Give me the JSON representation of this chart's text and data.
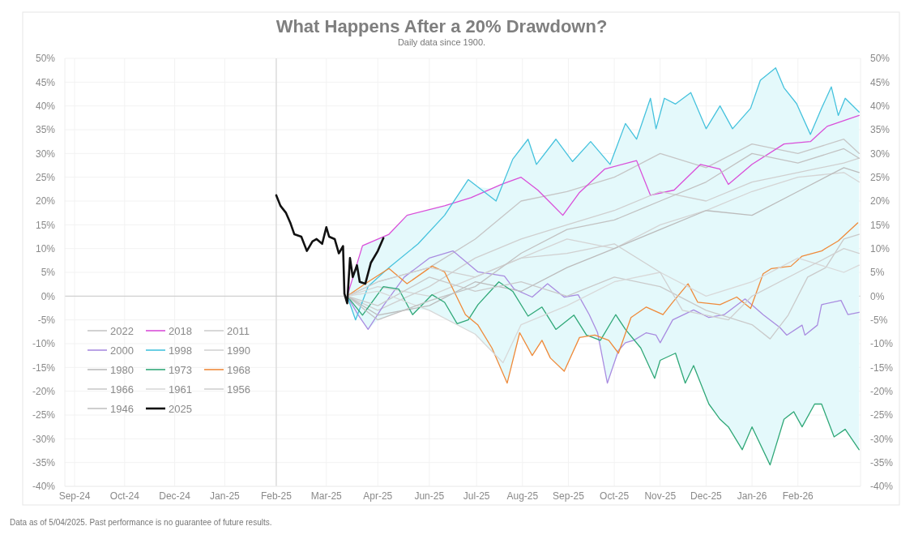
{
  "chart_data": {
    "type": "line",
    "title": "What Happens After a 20% Drawdown?",
    "subtitle": "Daily data since 1900.",
    "annotations": [
      "Data as of 5/04/2025. Past performance is no guarantee of future results."
    ],
    "xlim": [
      "2024-09-13",
      "2026-04-08"
    ],
    "xticks": [
      {
        "value": "2024-09-20",
        "label": "Sep-24"
      },
      {
        "value": "2024-10-26",
        "label": "Oct-24"
      },
      {
        "value": "2024-12-01",
        "label": "Dec-24"
      },
      {
        "value": "2025-01-06",
        "label": "Jan-25"
      },
      {
        "value": "2025-02-12",
        "label": "Feb-25"
      },
      {
        "value": "2025-03-20",
        "label": "Mar-25"
      },
      {
        "value": "2025-04-26",
        "label": "Apr-25"
      },
      {
        "value": "2025-06-02",
        "label": "Jun-25"
      },
      {
        "value": "2025-07-06",
        "label": "Jul-25"
      },
      {
        "value": "2025-08-08",
        "label": "Aug-25"
      },
      {
        "value": "2025-09-10",
        "label": "Sep-25"
      },
      {
        "value": "2025-10-13",
        "label": "Oct-25"
      },
      {
        "value": "2025-11-15",
        "label": "Nov-25"
      },
      {
        "value": "2025-12-18",
        "label": "Dec-25"
      },
      {
        "value": "2026-01-20",
        "label": "Jan-26"
      },
      {
        "value": "2026-02-22",
        "label": "Feb-26"
      }
    ],
    "ylim": [
      -40,
      50
    ],
    "yticks": [
      {
        "value": -40,
        "label": "-40%"
      },
      {
        "value": -35,
        "label": "-35%"
      },
      {
        "value": -30,
        "label": "-30%"
      },
      {
        "value": -25,
        "label": "-25%"
      },
      {
        "value": -20,
        "label": "-20%"
      },
      {
        "value": -15,
        "label": "-15%"
      },
      {
        "value": -10,
        "label": "-10%"
      },
      {
        "value": -5,
        "label": "-5%"
      },
      {
        "value": 0,
        "label": "0%"
      },
      {
        "value": 5,
        "label": "5%"
      },
      {
        "value": 10,
        "label": "10%"
      },
      {
        "value": 15,
        "label": "15%"
      },
      {
        "value": 20,
        "label": "20%"
      },
      {
        "value": 25,
        "label": "25%"
      },
      {
        "value": 30,
        "label": "30%"
      },
      {
        "value": 35,
        "label": "35%"
      },
      {
        "value": 40,
        "label": "40%"
      },
      {
        "value": 45,
        "label": "45%"
      },
      {
        "value": 50,
        "label": "50%"
      }
    ],
    "y2lim": [
      -40,
      50
    ],
    "y2ticks": [
      {
        "value": -40,
        "label": "-40%"
      },
      {
        "value": -35,
        "label": "-35%"
      },
      {
        "value": -30,
        "label": "-30%"
      },
      {
        "value": -25,
        "label": "-25%"
      },
      {
        "value": -20,
        "label": "-20%"
      },
      {
        "value": -15,
        "label": "-15%"
      },
      {
        "value": -10,
        "label": "-10%"
      },
      {
        "value": -5,
        "label": "-5%"
      },
      {
        "value": 0,
        "label": "0%"
      },
      {
        "value": 5,
        "label": "5%"
      },
      {
        "value": 10,
        "label": "10%"
      },
      {
        "value": 15,
        "label": "15%"
      },
      {
        "value": 20,
        "label": "20%"
      },
      {
        "value": 25,
        "label": "25%"
      },
      {
        "value": 30,
        "label": "30%"
      },
      {
        "value": 35,
        "label": "35%"
      },
      {
        "value": 40,
        "label": "40%"
      },
      {
        "value": 45,
        "label": "45%"
      },
      {
        "value": 50,
        "label": "50%"
      }
    ],
    "grid": true,
    "legend": "bottom left",
    "line_style": "solid",
    "ref_lines": [
      {
        "axis": "x",
        "value": "2025-02-12",
        "color": "#d0d0d0"
      },
      {
        "axis": "y",
        "value": 0,
        "color": "#c8c8c8"
      }
    ],
    "series": [
      {
        "name": "2022",
        "color": "#c6c6c6",
        "x": [
          "2025-04-04",
          "2025-04-26",
          "2025-06-02",
          "2025-07-05",
          "2025-08-07",
          "2025-09-09",
          "2025-10-13",
          "2025-11-15",
          "2025-12-18",
          "2026-01-20",
          "2026-02-22",
          "2026-03-27",
          "2026-04-07"
        ],
        "values": [
          0,
          3,
          6,
          12,
          20,
          22,
          25,
          30,
          27,
          32,
          30,
          33,
          30
        ]
      },
      {
        "name": "2018",
        "color": "#d94fd9",
        "x": [
          "2025-04-04",
          "2025-04-15",
          "2025-05-04",
          "2025-05-17",
          "2025-06-13",
          "2025-07-02",
          "2025-07-24",
          "2025-08-07",
          "2025-08-19",
          "2025-09-06",
          "2025-09-18",
          "2025-10-06",
          "2025-10-29",
          "2025-11-08",
          "2025-11-25",
          "2025-12-14",
          "2025-12-28",
          "2026-01-03",
          "2026-01-20",
          "2026-02-12",
          "2026-03-03",
          "2026-03-15",
          "2026-04-07"
        ],
        "values": [
          0,
          10.6,
          13,
          17,
          19,
          20.7,
          23.5,
          25,
          22.3,
          17,
          21.8,
          26.7,
          28.5,
          21.2,
          22.3,
          27.7,
          26.7,
          23.5,
          27.7,
          32,
          32.5,
          35.7,
          38
        ]
      },
      {
        "name": "2011",
        "color": "#cfcfcf",
        "x": [
          "2025-04-04",
          "2025-04-26",
          "2025-06-02",
          "2025-07-05",
          "2025-08-07",
          "2025-09-09",
          "2025-10-13",
          "2025-11-15",
          "2025-12-18",
          "2026-01-20",
          "2026-02-22",
          "2026-03-27",
          "2026-04-07"
        ],
        "values": [
          0,
          -3,
          2,
          8,
          12,
          15,
          18,
          22,
          20,
          24,
          26,
          28,
          29
        ]
      },
      {
        "name": "2000",
        "color": "#a98ce0",
        "x": [
          "2025-04-04",
          "2025-04-12",
          "2025-04-19",
          "2025-04-30",
          "2025-05-15",
          "2025-06-02",
          "2025-06-19",
          "2025-07-07",
          "2025-07-26",
          "2025-08-02",
          "2025-08-15",
          "2025-08-26",
          "2025-09-07",
          "2025-09-17",
          "2025-09-25",
          "2025-10-01",
          "2025-10-08",
          "2025-10-16",
          "2025-10-21",
          "2025-10-27",
          "2025-11-05",
          "2025-11-12",
          "2025-11-15",
          "2025-11-24",
          "2025-12-09",
          "2025-12-20",
          "2025-12-31",
          "2026-01-15",
          "2026-01-28",
          "2026-02-09",
          "2026-02-14",
          "2026-02-25",
          "2026-02-27",
          "2026-03-08",
          "2026-03-11",
          "2026-03-25",
          "2026-03-30",
          "2026-04-07"
        ],
        "values": [
          0,
          -4,
          -7,
          -2,
          4,
          8,
          9.5,
          5.1,
          4.2,
          1.5,
          -0.2,
          2.6,
          -0.2,
          0.3,
          -3.9,
          -7.7,
          -18.3,
          -11.4,
          -9.8,
          -9.3,
          -7.7,
          -8.2,
          -9.8,
          -5,
          -2.9,
          -4.5,
          -3.9,
          -0.6,
          -3.9,
          -6.6,
          -8.2,
          -6.1,
          -8.2,
          -6.1,
          -1.8,
          -0.9,
          -3.9,
          -3.4
        ]
      },
      {
        "name": "1998",
        "color": "#45c2dd",
        "x": [
          "2025-04-04",
          "2025-04-10",
          "2025-04-19",
          "2025-05-04",
          "2025-05-25",
          "2025-06-13",
          "2025-06-30",
          "2025-07-20",
          "2025-08-01",
          "2025-08-12",
          "2025-08-18",
          "2025-09-01",
          "2025-09-13",
          "2025-09-26",
          "2025-10-10",
          "2025-10-21",
          "2025-10-29",
          "2025-11-08",
          "2025-11-12",
          "2025-11-18",
          "2025-11-26",
          "2025-12-07",
          "2025-12-18",
          "2025-12-28",
          "2026-01-06",
          "2026-01-19",
          "2026-01-26",
          "2026-02-06",
          "2026-02-12",
          "2026-02-21",
          "2026-03-03",
          "2026-03-11",
          "2026-03-18",
          "2026-03-23",
          "2026-03-28",
          "2026-04-07"
        ],
        "values": [
          0,
          -5,
          2,
          6,
          11,
          17,
          24.5,
          20,
          28.8,
          33,
          27.7,
          33,
          28.3,
          32.5,
          27.7,
          36.3,
          33,
          41.6,
          35.2,
          41.6,
          40.4,
          42.8,
          35.2,
          40,
          35.2,
          39.5,
          45.4,
          48,
          43.8,
          40.5,
          34,
          39.5,
          44,
          38,
          41.6,
          38.7
        ]
      },
      {
        "name": "1990",
        "color": "#d4d4d4",
        "x": [
          "2025-04-04",
          "2025-04-26",
          "2025-06-02",
          "2025-07-05",
          "2025-08-07",
          "2025-09-09",
          "2025-10-13",
          "2025-11-15",
          "2025-12-18",
          "2026-01-20",
          "2026-02-22",
          "2026-03-27",
          "2026-04-07"
        ],
        "values": [
          0,
          2,
          0,
          4,
          8,
          12,
          10,
          15,
          18,
          22,
          25,
          26,
          24
        ]
      },
      {
        "name": "1980",
        "color": "#bcbcbc",
        "x": [
          "2025-04-04",
          "2025-04-26",
          "2025-06-02",
          "2025-07-05",
          "2025-08-07",
          "2025-09-09",
          "2025-10-13",
          "2025-11-15",
          "2025-12-18",
          "2026-01-20",
          "2026-02-22",
          "2026-03-27",
          "2026-04-07"
        ],
        "values": [
          0,
          -4,
          -2,
          3,
          1,
          6,
          10,
          14,
          18,
          17,
          22,
          27,
          26
        ]
      },
      {
        "name": "1973",
        "color": "#30a878",
        "x": [
          "2025-04-04",
          "2025-04-15",
          "2025-04-30",
          "2025-05-11",
          "2025-05-21",
          "2025-06-04",
          "2025-06-13",
          "2025-06-22",
          "2025-06-30",
          "2025-07-07",
          "2025-07-22",
          "2025-08-01",
          "2025-08-12",
          "2025-08-22",
          "2025-09-01",
          "2025-09-14",
          "2025-09-23",
          "2025-10-03",
          "2025-10-14",
          "2025-10-21",
          "2025-11-01",
          "2025-11-11",
          "2025-11-15",
          "2025-11-26",
          "2025-12-03",
          "2025-12-09",
          "2025-12-20",
          "2025-12-28",
          "2026-01-03",
          "2026-01-13",
          "2026-01-20",
          "2026-02-02",
          "2026-02-12",
          "2026-02-19",
          "2026-02-25",
          "2026-03-06",
          "2026-03-11",
          "2026-03-20",
          "2026-03-28",
          "2026-04-07"
        ],
        "values": [
          0,
          -4,
          2,
          1.5,
          -3.9,
          0.3,
          -1.3,
          -5.8,
          -5,
          -1.8,
          3,
          1,
          -4.2,
          -2.3,
          -7,
          -4,
          -8.2,
          -9.3,
          -3.9,
          -7,
          -10.9,
          -17.3,
          -13.5,
          -12,
          -18.3,
          -14.6,
          -22.7,
          -25.9,
          -27.5,
          -32.3,
          -27.5,
          -35.5,
          -25.9,
          -24.3,
          -27.5,
          -22.7,
          -22.7,
          -29.6,
          -28,
          -32.3
        ]
      },
      {
        "name": "1968",
        "color": "#ef8a3a",
        "x": [
          "2025-04-04",
          "2025-04-19",
          "2025-05-04",
          "2025-05-17",
          "2025-06-04",
          "2025-06-13",
          "2025-06-28",
          "2025-07-07",
          "2025-07-17",
          "2025-07-28",
          "2025-08-06",
          "2025-08-15",
          "2025-08-22",
          "2025-08-28",
          "2025-09-07",
          "2025-09-18",
          "2025-09-29",
          "2025-10-09",
          "2025-10-16",
          "2025-10-25",
          "2025-11-05",
          "2025-11-17",
          "2025-11-24",
          "2025-12-05",
          "2025-12-12",
          "2025-12-28",
          "2026-01-09",
          "2026-01-19",
          "2026-01-28",
          "2026-02-03",
          "2026-02-17",
          "2026-02-25",
          "2026-03-11",
          "2026-03-23",
          "2026-04-06"
        ],
        "values": [
          0,
          3,
          5.8,
          2.6,
          6.3,
          5.1,
          -3.9,
          -6.1,
          -10.9,
          -18.3,
          -7.7,
          -12.5,
          -9.3,
          -13,
          -15.8,
          -8.7,
          -8.2,
          -9.3,
          -12,
          -4.5,
          -2.3,
          -3.9,
          -1.3,
          2.6,
          -1.3,
          -1.8,
          -0.2,
          -2.6,
          4.7,
          5.8,
          6.3,
          8.4,
          9.5,
          11.6,
          15.4
        ]
      },
      {
        "name": "1966",
        "color": "#cacaca",
        "x": [
          "2025-04-04",
          "2025-04-26",
          "2025-06-02",
          "2025-07-05",
          "2025-08-07",
          "2025-09-09",
          "2025-10-13",
          "2025-11-15",
          "2025-12-18",
          "2026-01-20",
          "2026-02-02",
          "2026-02-15",
          "2026-03-01",
          "2026-03-14",
          "2026-03-27",
          "2026-04-07"
        ],
        "values": [
          0,
          -2,
          4,
          1,
          3,
          0,
          4,
          2,
          -3,
          -6,
          -9,
          -4,
          4,
          6,
          12,
          13
        ]
      },
      {
        "name": "1961",
        "color": "#d8d8d8",
        "x": [
          "2025-04-04",
          "2025-04-26",
          "2025-06-02",
          "2025-07-05",
          "2025-07-25",
          "2025-08-07",
          "2025-09-09",
          "2025-10-13",
          "2025-11-15",
          "2025-12-18",
          "2026-01-20",
          "2026-02-22",
          "2026-03-27",
          "2026-04-07"
        ],
        "values": [
          0,
          1,
          -3,
          -8,
          -14,
          -6,
          -2,
          3,
          5,
          0,
          3,
          8,
          5,
          6.5
        ]
      },
      {
        "name": "1956",
        "color": "#d0d0d0",
        "x": [
          "2025-04-04",
          "2025-04-26",
          "2025-06-02",
          "2025-07-05",
          "2025-08-07",
          "2025-09-09",
          "2025-10-13",
          "2025-11-15",
          "2025-12-01",
          "2025-12-18",
          "2026-01-03",
          "2026-01-20",
          "2026-02-22",
          "2026-03-14",
          "2026-03-27",
          "2026-04-07"
        ],
        "values": [
          0,
          3,
          6,
          4,
          8,
          9,
          11,
          5,
          -3,
          -4,
          -5,
          0,
          5,
          8,
          10,
          9
        ]
      },
      {
        "name": "1946",
        "color": "#c2c2c2",
        "x": [
          "2025-04-04",
          "2025-04-26",
          "2025-06-02",
          "2025-07-05",
          "2025-08-07",
          "2025-09-09",
          "2025-10-13",
          "2025-11-15",
          "2025-12-18",
          "2026-01-20",
          "2026-02-22",
          "2026-03-27",
          "2026-04-07"
        ],
        "values": [
          0,
          -5,
          -1,
          2,
          9,
          14,
          16,
          20,
          24,
          30,
          28,
          31,
          29
        ]
      },
      {
        "name": "2025",
        "color": "#111111",
        "x": [
          "2025-02-12",
          "2025-02-15",
          "2025-02-19",
          "2025-02-22",
          "2025-02-25",
          "2025-03-02",
          "2025-03-06",
          "2025-03-10",
          "2025-03-13",
          "2025-03-17",
          "2025-03-20",
          "2025-03-22",
          "2025-03-26",
          "2025-03-29",
          "2025-04-01",
          "2025-04-02",
          "2025-04-04",
          "2025-04-06",
          "2025-04-08",
          "2025-04-11",
          "2025-04-13",
          "2025-04-17",
          "2025-04-21",
          "2025-04-26",
          "2025-04-30"
        ],
        "values": [
          21.2,
          19,
          17.5,
          15.5,
          13,
          12.5,
          9.5,
          11.5,
          12,
          11,
          14.5,
          12.5,
          12,
          9,
          10.5,
          0.5,
          -1.5,
          8,
          4,
          6.5,
          3,
          2.6,
          7,
          9.5,
          12.2
        ]
      }
    ]
  }
}
